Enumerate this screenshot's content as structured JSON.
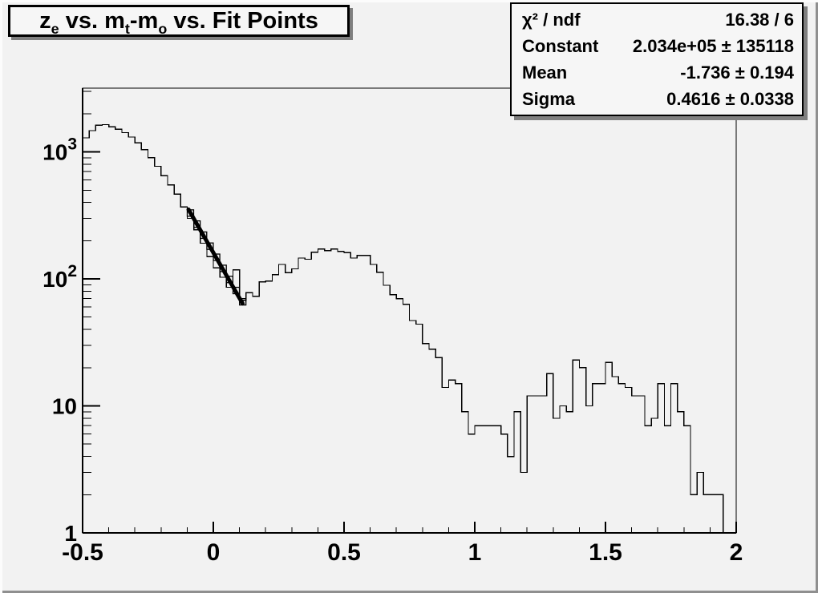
{
  "canvas": {
    "bg": "#f2f2f2",
    "bevel_light": "#fcfcfc",
    "bevel_dark": "#8f8f8f",
    "box_fill": "#f6f6f6",
    "shadow": "#7f7f7f",
    "line_color": "#000000"
  },
  "title": {
    "plain": "z_e vs. m_t-m_o vs. Fit Points",
    "parts": [
      {
        "text": "z",
        "sub": "e"
      },
      {
        "text": " vs. m",
        "sub": "t"
      },
      {
        "text": "-m",
        "sub": "o"
      },
      {
        "text": " vs. Fit Points",
        "sub": ""
      }
    ]
  },
  "stats": {
    "rows": [
      {
        "label": "χ² / ndf",
        "value": "16.38 / 6"
      },
      {
        "label": "Constant",
        "value": "2.034e+05 ± 135118"
      },
      {
        "label": "Mean",
        "value": "-1.736 ± 0.194"
      },
      {
        "label": "Sigma",
        "value": "0.4616 ± 0.0338"
      }
    ]
  },
  "chart_data": {
    "type": "histogram-step",
    "title": "z_e vs. m_t-m_o vs. Fit Points",
    "xlabel": "",
    "ylabel": "",
    "log_y": true,
    "x_min": -0.5,
    "x_max": 2.0,
    "y_min": 1,
    "y_max": 3176,
    "x_start": -0.5,
    "bin_width": 0.025,
    "values": [
      1290,
      1470,
      1620,
      1640,
      1580,
      1510,
      1420,
      1310,
      1180,
      1040,
      900,
      770,
      650,
      550,
      465,
      368,
      300,
      244,
      191,
      150,
      122,
      103,
      86,
      118,
      68,
      78,
      73,
      95,
      96,
      108,
      130,
      112,
      120,
      146,
      143,
      162,
      172,
      167,
      172,
      165,
      161,
      146,
      153,
      153,
      130,
      113,
      89,
      75,
      70,
      63,
      47,
      44,
      31,
      28,
      24,
      14,
      16,
      15,
      9,
      6,
      7,
      7,
      7,
      7,
      6,
      4,
      9,
      3,
      12,
      12,
      12,
      18,
      8,
      10,
      9,
      23,
      20,
      10,
      15,
      15,
      22,
      17,
      15,
      14,
      12,
      12,
      7,
      8,
      15,
      7,
      15,
      9,
      7,
      2,
      3,
      2,
      2,
      2,
      0,
      0
    ],
    "x_major_ticks": [
      {
        "v": -0.5,
        "label": "-0.5"
      },
      {
        "v": 0,
        "label": "0"
      },
      {
        "v": 0.5,
        "label": "0.5"
      },
      {
        "v": 1,
        "label": "1"
      },
      {
        "v": 1.5,
        "label": "1.5"
      },
      {
        "v": 2,
        "label": "2"
      }
    ],
    "x_minor_step": 0.1,
    "y_major_ticks": [
      {
        "v": 1,
        "base": "1",
        "exp": ""
      },
      {
        "v": 10,
        "base": "10",
        "exp": ""
      },
      {
        "v": 100,
        "base": "10",
        "exp": "2"
      },
      {
        "v": 1000,
        "base": "10",
        "exp": "3"
      }
    ],
    "fit_line": {
      "x1": -0.095,
      "v1": 352,
      "x2": 0.112,
      "v2": 64
    },
    "fit_points": [
      {
        "x": -0.0875,
        "v": 330
      },
      {
        "x": -0.0625,
        "v": 270
      },
      {
        "x": -0.0375,
        "v": 221
      },
      {
        "x": -0.0125,
        "v": 181
      },
      {
        "x": 0.0125,
        "v": 148
      },
      {
        "x": 0.0375,
        "v": 121
      },
      {
        "x": 0.0625,
        "v": 99
      },
      {
        "x": 0.0875,
        "v": 81
      },
      {
        "x": 0.1125,
        "v": 66
      }
    ]
  }
}
